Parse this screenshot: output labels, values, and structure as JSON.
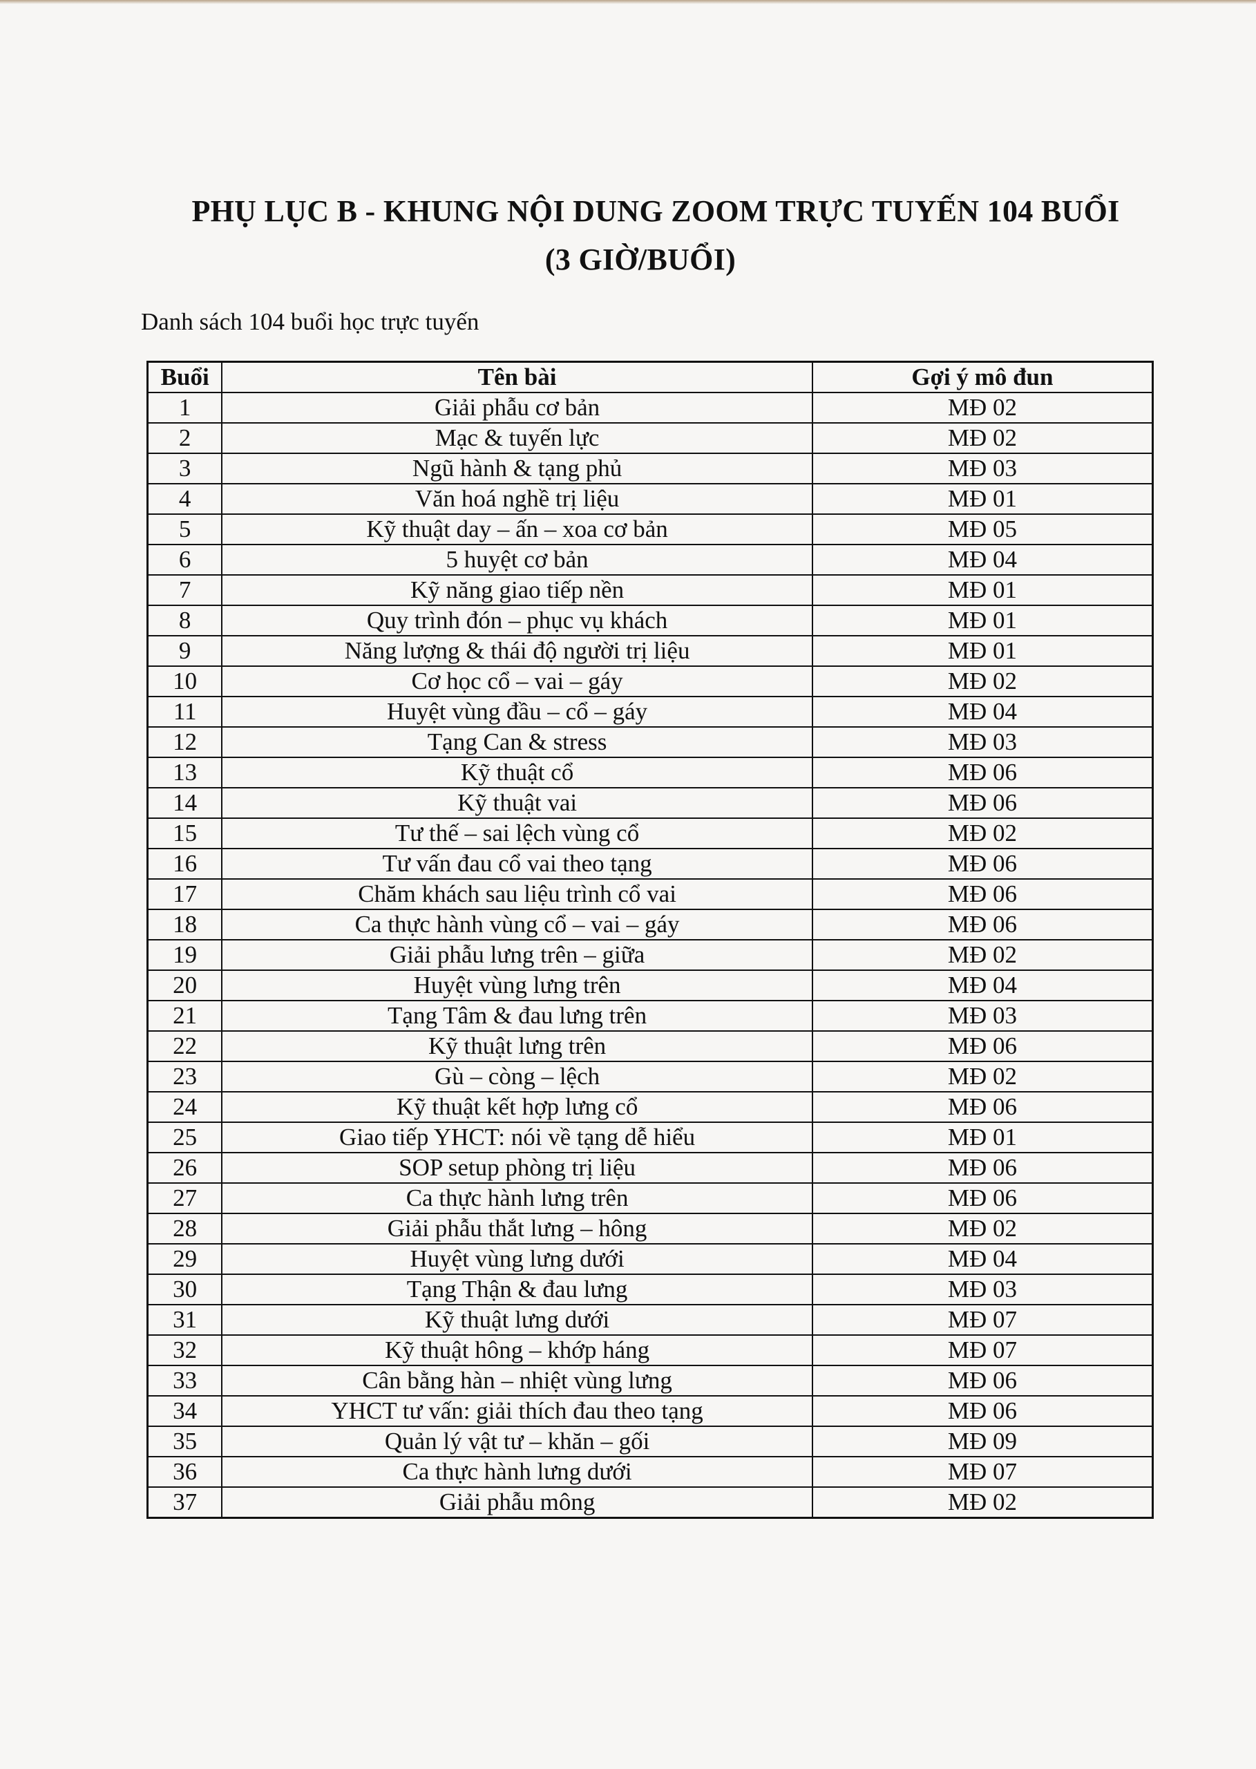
{
  "document": {
    "title_line1": "PHỤ LỤC B - KHUNG NỘI DUNG ZOOM TRỰC TUYẾN 104 BUỔI",
    "title_line2": "(3 GIỜ/BUỔI)",
    "subtitle": "Danh sách 104 buổi học trực tuyến"
  },
  "table": {
    "headers": [
      "Buổi",
      "Tên bài",
      "Gợi ý mô đun"
    ],
    "rows": [
      [
        "1",
        "Giải phẫu cơ bản",
        "MĐ 02"
      ],
      [
        "2",
        "Mạc & tuyến lực",
        "MĐ 02"
      ],
      [
        "3",
        "Ngũ hành & tạng phủ",
        "MĐ 03"
      ],
      [
        "4",
        "Văn hoá nghề trị liệu",
        "MĐ 01"
      ],
      [
        "5",
        "Kỹ thuật day – ấn – xoa cơ bản",
        "MĐ 05"
      ],
      [
        "6",
        "5 huyệt cơ bản",
        "MĐ 04"
      ],
      [
        "7",
        "Kỹ năng giao tiếp nền",
        "MĐ 01"
      ],
      [
        "8",
        "Quy trình đón – phục vụ khách",
        "MĐ 01"
      ],
      [
        "9",
        "Năng lượng & thái độ người trị liệu",
        "MĐ 01"
      ],
      [
        "10",
        "Cơ học cổ – vai – gáy",
        "MĐ 02"
      ],
      [
        "11",
        "Huyệt vùng đầu – cổ – gáy",
        "MĐ 04"
      ],
      [
        "12",
        "Tạng Can & stress",
        "MĐ 03"
      ],
      [
        "13",
        "Kỹ thuật cổ",
        "MĐ 06"
      ],
      [
        "14",
        "Kỹ thuật vai",
        "MĐ 06"
      ],
      [
        "15",
        "Tư thế – sai lệch vùng cổ",
        "MĐ 02"
      ],
      [
        "16",
        "Tư vấn đau cổ vai theo tạng",
        "MĐ 06"
      ],
      [
        "17",
        "Chăm khách sau liệu trình cổ vai",
        "MĐ 06"
      ],
      [
        "18",
        "Ca thực hành vùng cổ – vai – gáy",
        "MĐ 06"
      ],
      [
        "19",
        "Giải phẫu lưng trên – giữa",
        "MĐ 02"
      ],
      [
        "20",
        "Huyệt vùng lưng trên",
        "MĐ 04"
      ],
      [
        "21",
        "Tạng Tâm & đau lưng trên",
        "MĐ 03"
      ],
      [
        "22",
        "Kỹ thuật lưng trên",
        "MĐ 06"
      ],
      [
        "23",
        "Gù – còng – lệch",
        "MĐ 02"
      ],
      [
        "24",
        "Kỹ thuật kết hợp lưng cổ",
        "MĐ 06"
      ],
      [
        "25",
        "Giao tiếp YHCT: nói về tạng dễ hiểu",
        "MĐ 01"
      ],
      [
        "26",
        "SOP setup phòng trị liệu",
        "MĐ 06"
      ],
      [
        "27",
        "Ca thực hành lưng trên",
        "MĐ 06"
      ],
      [
        "28",
        "Giải phẫu thắt lưng – hông",
        "MĐ 02"
      ],
      [
        "29",
        "Huyệt vùng lưng dưới",
        "MĐ 04"
      ],
      [
        "30",
        "Tạng Thận & đau lưng",
        "MĐ 03"
      ],
      [
        "31",
        "Kỹ thuật lưng dưới",
        "MĐ 07"
      ],
      [
        "32",
        "Kỹ thuật hông – khớp háng",
        "MĐ 07"
      ],
      [
        "33",
        "Cân bằng hàn – nhiệt vùng lưng",
        "MĐ 06"
      ],
      [
        "34",
        "YHCT tư vấn: giải thích đau theo tạng",
        "MĐ 06"
      ],
      [
        "35",
        "Quản lý vật tư – khăn – gối",
        "MĐ 09"
      ],
      [
        "36",
        "Ca thực hành lưng dưới",
        "MĐ 07"
      ],
      [
        "37",
        "Giải phẫu mông",
        "MĐ 02"
      ]
    ]
  }
}
